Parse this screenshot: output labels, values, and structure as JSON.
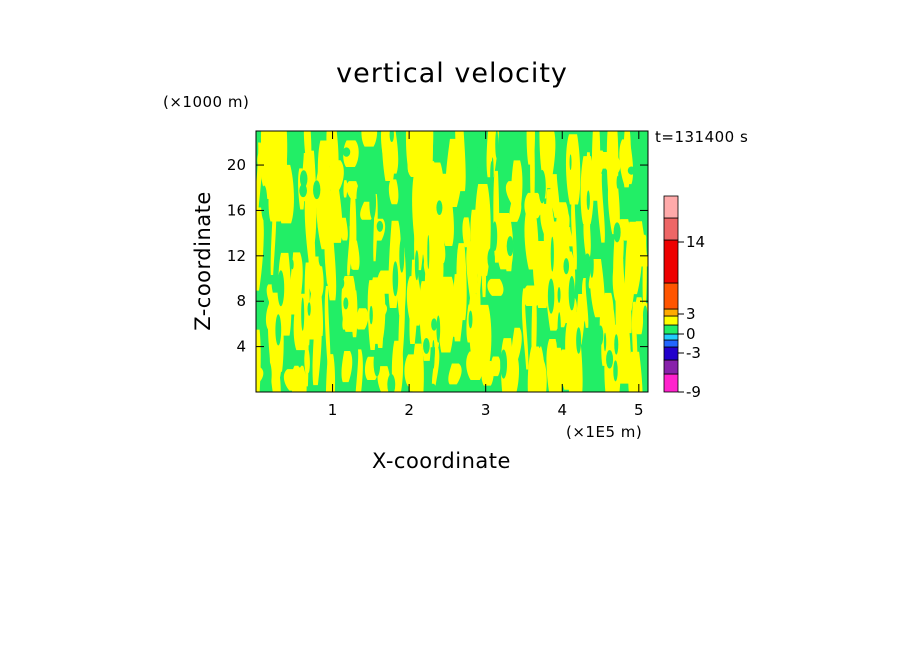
{
  "chart_data": {
    "type": "heatmap",
    "title": "vertical velocity",
    "xlabel": "X-coordinate",
    "ylabel": "Z-coordinate",
    "x_unit_label": "(×1E5 m)",
    "y_unit_label": "(×1000 m)",
    "time_label": "t=131400 s",
    "xlim": [
      0,
      5.12
    ],
    "ylim": [
      0,
      23
    ],
    "x_ticks": [
      1,
      2,
      3,
      4,
      5
    ],
    "x_tick_labels": [
      "1",
      "2",
      "3",
      "4",
      "5"
    ],
    "y_ticks": [
      4,
      8,
      12,
      16,
      20
    ],
    "y_tick_labels": [
      "4",
      "8",
      "12",
      "16",
      "20"
    ],
    "field_colors": {
      "positive": "#ffff00",
      "negative": "#22ee66"
    },
    "colorbar": {
      "levels": [
        {
          "color": "#ff22cc"
        },
        {
          "color": "#8822aa"
        },
        {
          "color": "#2200cc"
        },
        {
          "color": "#2266ff"
        },
        {
          "color": "#22ccff"
        },
        {
          "color": "#22ee66"
        },
        {
          "color": "#ffff00"
        },
        {
          "color": "#ffaa00"
        },
        {
          "color": "#ff5500"
        },
        {
          "color": "#ee0000"
        },
        {
          "color": "#ee6666"
        },
        {
          "color": "#ffaaaa"
        },
        {
          "color": "#ffcccc"
        }
      ],
      "tick_labels": [
        "-9",
        "-3",
        "0",
        "3",
        "14"
      ]
    }
  }
}
